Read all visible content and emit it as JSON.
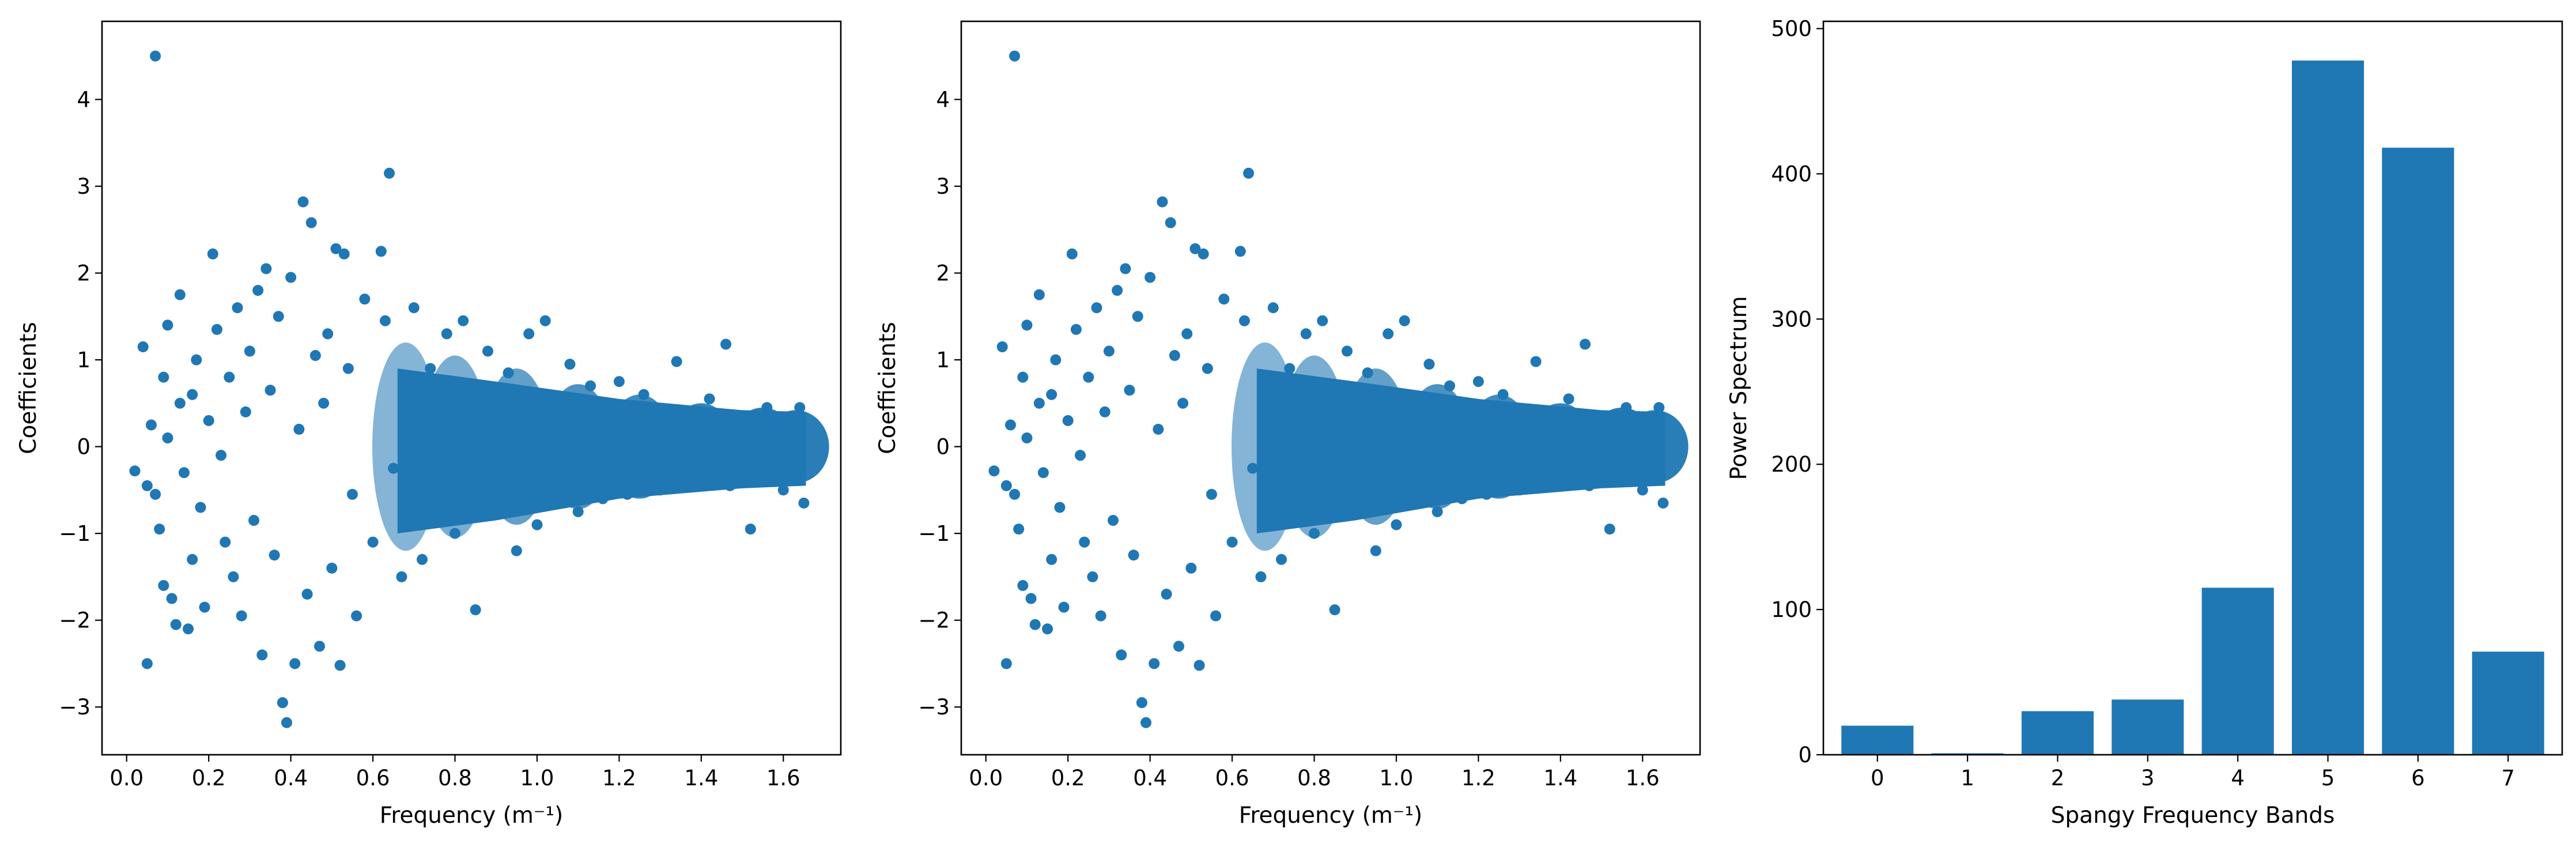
{
  "chart_data": [
    {
      "type": "scatter",
      "xlabel": "Frequency (m⁻¹)",
      "ylabel": "Coefficients",
      "xlim": [
        -0.06,
        1.74
      ],
      "ylim": [
        -3.55,
        4.9
      ],
      "xticks": [
        0.0,
        0.2,
        0.4,
        0.6,
        0.8,
        1.0,
        1.2,
        1.4,
        1.6
      ],
      "xtick_labels": [
        "0.0",
        "0.2",
        "0.4",
        "0.6",
        "0.8",
        "1.0",
        "1.2",
        "1.4",
        "1.6"
      ],
      "yticks": [
        -3,
        -2,
        -1,
        0,
        1,
        2,
        3,
        4
      ],
      "ytick_labels": [
        "−3",
        "−2",
        "−1",
        "0",
        "1",
        "2",
        "3",
        "4"
      ],
      "color": "#1f77b4",
      "points": [
        [
          0.02,
          -0.28
        ],
        [
          0.04,
          1.15
        ],
        [
          0.05,
          -2.5
        ],
        [
          0.05,
          -0.45
        ],
        [
          0.06,
          0.25
        ],
        [
          0.07,
          4.5
        ],
        [
          0.07,
          -0.55
        ],
        [
          0.08,
          -0.95
        ],
        [
          0.09,
          0.8
        ],
        [
          0.09,
          -1.6
        ],
        [
          0.1,
          1.4
        ],
        [
          0.1,
          0.1
        ],
        [
          0.11,
          -1.75
        ],
        [
          0.12,
          -2.05
        ],
        [
          0.13,
          1.75
        ],
        [
          0.13,
          0.5
        ],
        [
          0.14,
          -0.3
        ],
        [
          0.15,
          -2.1
        ],
        [
          0.16,
          0.6
        ],
        [
          0.16,
          -1.3
        ],
        [
          0.17,
          1.0
        ],
        [
          0.18,
          -0.7
        ],
        [
          0.19,
          -1.85
        ],
        [
          0.2,
          0.3
        ],
        [
          0.21,
          2.22
        ],
        [
          0.22,
          1.35
        ],
        [
          0.23,
          -0.1
        ],
        [
          0.24,
          -1.1
        ],
        [
          0.25,
          0.8
        ],
        [
          0.26,
          -1.5
        ],
        [
          0.27,
          1.6
        ],
        [
          0.28,
          -1.95
        ],
        [
          0.29,
          0.4
        ],
        [
          0.3,
          1.1
        ],
        [
          0.31,
          -0.85
        ],
        [
          0.32,
          1.8
        ],
        [
          0.33,
          -2.4
        ],
        [
          0.34,
          2.05
        ],
        [
          0.35,
          0.65
        ],
        [
          0.36,
          -1.25
        ],
        [
          0.37,
          1.5
        ],
        [
          0.38,
          -2.95
        ],
        [
          0.39,
          -3.18
        ],
        [
          0.4,
          1.95
        ],
        [
          0.41,
          -2.5
        ],
        [
          0.42,
          0.2
        ],
        [
          0.43,
          2.82
        ],
        [
          0.44,
          -1.7
        ],
        [
          0.45,
          2.58
        ],
        [
          0.46,
          1.05
        ],
        [
          0.47,
          -2.3
        ],
        [
          0.48,
          0.5
        ],
        [
          0.49,
          1.3
        ],
        [
          0.5,
          -1.4
        ],
        [
          0.51,
          2.28
        ],
        [
          0.52,
          -2.52
        ],
        [
          0.53,
          2.22
        ],
        [
          0.54,
          0.9
        ],
        [
          0.55,
          -0.55
        ],
        [
          0.56,
          -1.95
        ],
        [
          0.58,
          1.7
        ],
        [
          0.6,
          -1.1
        ],
        [
          0.62,
          2.25
        ],
        [
          0.63,
          1.45
        ],
        [
          0.64,
          3.15
        ],
        [
          0.65,
          -0.25
        ],
        [
          0.67,
          -1.5
        ],
        [
          0.7,
          1.6
        ],
        [
          0.72,
          -1.3
        ],
        [
          0.74,
          0.9
        ],
        [
          0.76,
          -0.8
        ],
        [
          0.78,
          1.3
        ],
        [
          0.8,
          -1.0
        ],
        [
          0.82,
          1.45
        ],
        [
          0.85,
          -1.88
        ],
        [
          0.88,
          1.1
        ],
        [
          0.9,
          -0.6
        ],
        [
          0.93,
          0.85
        ],
        [
          0.95,
          -1.2
        ],
        [
          0.98,
          1.3
        ],
        [
          1.0,
          -0.9
        ],
        [
          1.02,
          1.45
        ],
        [
          1.05,
          -0.5
        ],
        [
          1.08,
          0.95
        ],
        [
          1.1,
          -0.75
        ],
        [
          1.13,
          0.7
        ],
        [
          1.16,
          -0.6
        ],
        [
          1.2,
          0.75
        ],
        [
          1.22,
          -0.55
        ],
        [
          1.26,
          0.6
        ],
        [
          1.3,
          -0.5
        ],
        [
          1.34,
          0.98
        ],
        [
          1.38,
          -0.45
        ],
        [
          1.42,
          0.55
        ],
        [
          1.46,
          1.18
        ],
        [
          1.47,
          -0.45
        ],
        [
          1.52,
          -0.95
        ],
        [
          1.56,
          0.45
        ],
        [
          1.6,
          -0.5
        ],
        [
          1.64,
          0.45
        ],
        [
          1.65,
          -0.65
        ]
      ]
    },
    {
      "type": "scatter",
      "xlabel": "Frequency (m⁻¹)",
      "ylabel": "Coefficients",
      "xlim": [
        -0.06,
        1.74
      ],
      "ylim": [
        -3.55,
        4.9
      ],
      "xticks": [
        0.0,
        0.2,
        0.4,
        0.6,
        0.8,
        1.0,
        1.2,
        1.4,
        1.6
      ],
      "xtick_labels": [
        "0.0",
        "0.2",
        "0.4",
        "0.6",
        "0.8",
        "1.0",
        "1.2",
        "1.4",
        "1.6"
      ],
      "yticks": [
        -3,
        -2,
        -1,
        0,
        1,
        2,
        3,
        4
      ],
      "ytick_labels": [
        "−3",
        "−2",
        "−1",
        "0",
        "1",
        "2",
        "3",
        "4"
      ],
      "color": "#1f77b4",
      "same_points_as": 0
    },
    {
      "type": "bar",
      "xlabel": "Spangy Frequency Bands",
      "ylabel": "Power Spectrum",
      "categories": [
        "0",
        "1",
        "2",
        "3",
        "4",
        "5",
        "6",
        "7"
      ],
      "values": [
        20,
        1,
        30,
        38,
        115,
        478,
        418,
        71
      ],
      "ylim": [
        0,
        505
      ],
      "yticks": [
        0,
        100,
        200,
        300,
        400,
        500
      ],
      "ytick_labels": [
        "0",
        "100",
        "200",
        "300",
        "400",
        "500"
      ],
      "color": "#1f77b4"
    }
  ]
}
